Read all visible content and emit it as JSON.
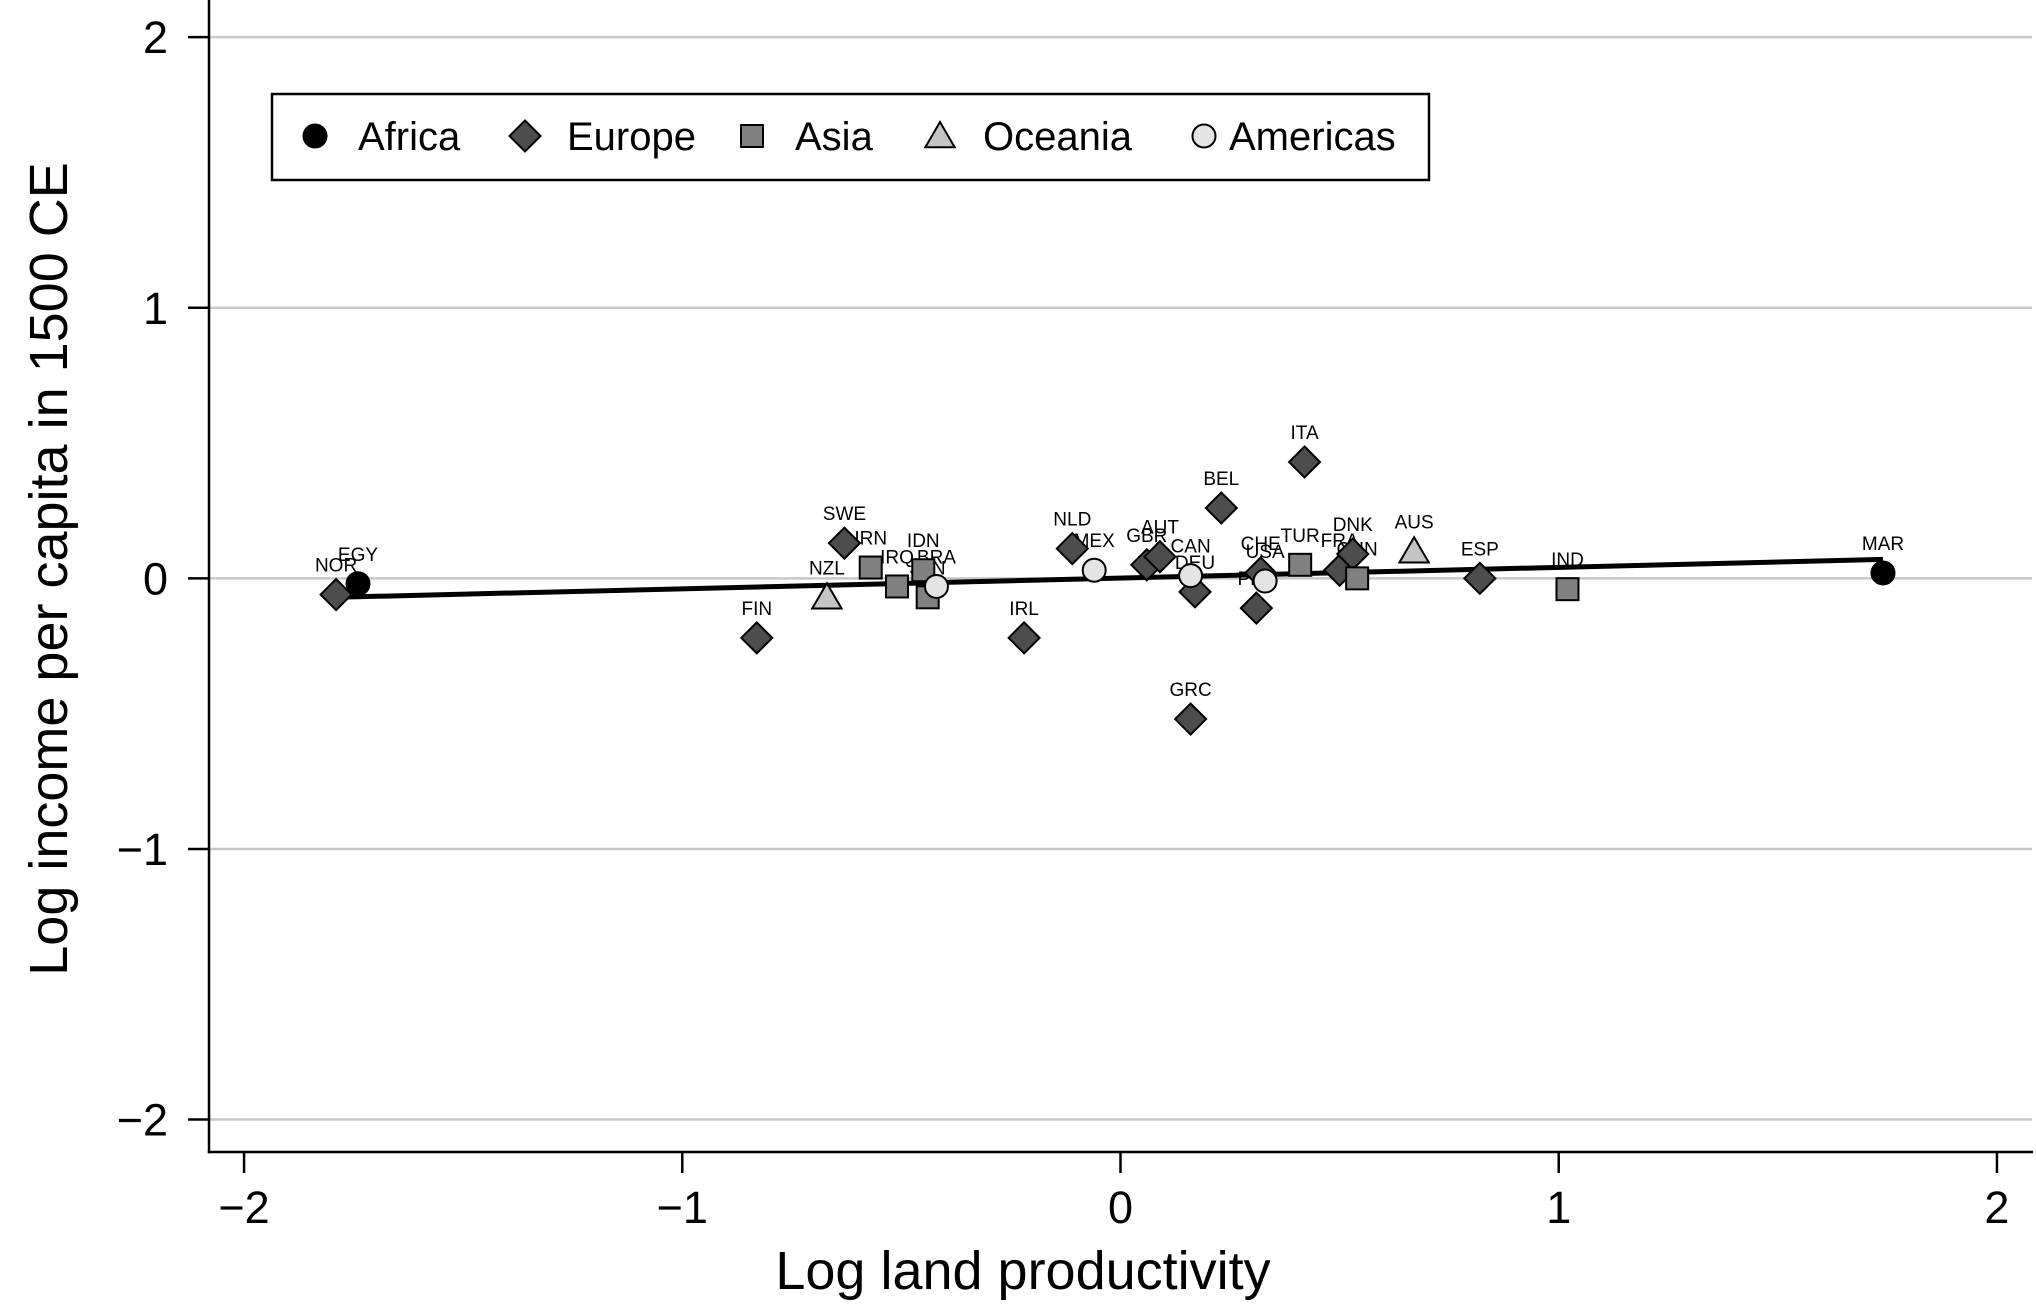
{
  "chart_data": {
    "type": "scatter",
    "xlabel": "Log land productivity",
    "ylabel": "Log income per capita in 1500 CE",
    "xlim": [
      -2.08,
      2.08
    ],
    "ylim": [
      -2.12,
      2.13
    ],
    "xticks": [
      -2,
      -1,
      0,
      1,
      2
    ],
    "xtick_labels": [
      "−2",
      "−1",
      "0",
      "1",
      "2"
    ],
    "yticks": [
      2,
      1,
      0,
      -1,
      -2
    ],
    "ytick_labels": [
      "2",
      "1",
      "0",
      "−1",
      "−2"
    ],
    "grid": true,
    "legend_position": "top-left",
    "series": [
      {
        "name": "Africa",
        "marker": "circle",
        "color": "#000000",
        "points": [
          {
            "label": "EGY",
            "x": -1.74,
            "y": -0.02
          },
          {
            "label": "MAR",
            "x": 1.74,
            "y": 0.02
          }
        ]
      },
      {
        "name": "Europe",
        "marker": "diamond",
        "color": "#4d4d4d",
        "points": [
          {
            "label": "NOR",
            "x": -1.79,
            "y": -0.06
          },
          {
            "label": "FIN",
            "x": -0.83,
            "y": -0.22
          },
          {
            "label": "SWE",
            "x": -0.63,
            "y": 0.13
          },
          {
            "label": "IRL",
            "x": -0.22,
            "y": -0.22
          },
          {
            "label": "NLD",
            "x": -0.11,
            "y": 0.11
          },
          {
            "label": "GBR",
            "x": 0.06,
            "y": 0.05
          },
          {
            "label": "AUT",
            "x": 0.09,
            "y": 0.08
          },
          {
            "label": "DEU",
            "x": 0.17,
            "y": -0.05
          },
          {
            "label": "GRC",
            "x": 0.16,
            "y": -0.52
          },
          {
            "label": "BEL",
            "x": 0.23,
            "y": 0.26
          },
          {
            "label": "PRT",
            "x": 0.31,
            "y": -0.11
          },
          {
            "label": "CHE",
            "x": 0.32,
            "y": 0.02
          },
          {
            "label": "ITA",
            "x": 0.42,
            "y": 0.43
          },
          {
            "label": "FRA",
            "x": 0.5,
            "y": 0.03
          },
          {
            "label": "DNK",
            "x": 0.53,
            "y": 0.09
          },
          {
            "label": "ESP",
            "x": 0.82,
            "y": 0.0
          }
        ]
      },
      {
        "name": "Asia",
        "marker": "square",
        "color": "#808080",
        "points": [
          {
            "label": "IRN",
            "x": -0.57,
            "y": 0.04
          },
          {
            "label": "IRQ",
            "x": -0.51,
            "y": -0.03
          },
          {
            "label": "IDN",
            "x": -0.45,
            "y": 0.03
          },
          {
            "label": "JPN",
            "x": -0.44,
            "y": -0.07
          },
          {
            "label": "TUR",
            "x": 0.41,
            "y": 0.05
          },
          {
            "label": "CHN",
            "x": 0.54,
            "y": 0.0
          },
          {
            "label": "IND",
            "x": 1.02,
            "y": -0.04
          }
        ]
      },
      {
        "name": "Oceania",
        "marker": "triangle",
        "color": "#c4c4c4",
        "points": [
          {
            "label": "NZL",
            "x": -0.67,
            "y": -0.07
          },
          {
            "label": "AUS",
            "x": 0.67,
            "y": 0.1
          }
        ]
      },
      {
        "name": "Americas",
        "marker": "circle",
        "color": "#e4e4e4",
        "points": [
          {
            "label": "BRA",
            "x": -0.42,
            "y": -0.03
          },
          {
            "label": "MEX",
            "x": -0.06,
            "y": 0.03
          },
          {
            "label": "CAN",
            "x": 0.16,
            "y": 0.01
          },
          {
            "label": "USA",
            "x": 0.33,
            "y": -0.01
          }
        ]
      }
    ],
    "fit_line": {
      "x": [
        -1.79,
        1.74
      ],
      "y": [
        -0.07,
        0.07
      ]
    }
  }
}
